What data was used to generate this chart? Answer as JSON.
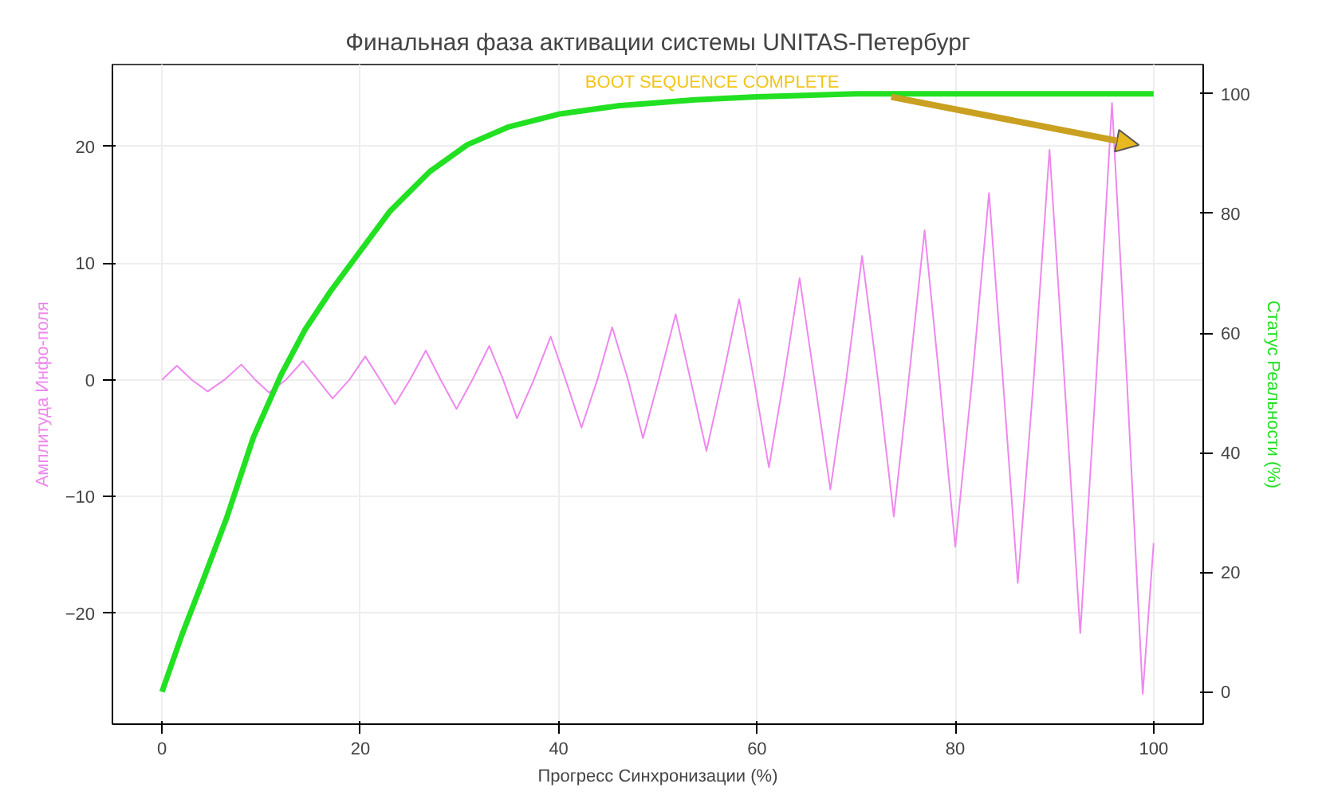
{
  "chart_data": {
    "type": "line",
    "title": "Финальная фаза активации системы UNITAS-Петербург",
    "xlabel": "Прогресс Синхронизации (%)",
    "ylabel": "Амплитуда Инфо-поля",
    "y2label": "Статус Реальности (%)",
    "xlim": [
      -5,
      105
    ],
    "xticks": [
      0,
      20,
      40,
      60,
      80,
      100
    ],
    "ylim": [
      -29.5,
      27
    ],
    "yticks": [
      -20,
      -10,
      0,
      10,
      20
    ],
    "y2lim": [
      -5.4,
      104.9
    ],
    "y2ticks": [
      0,
      20,
      40,
      60,
      80,
      100
    ],
    "grid": true,
    "annotations": [
      "BOOT SEQUENCE COMPLETE"
    ],
    "series": [
      {
        "color": "#ee88ee",
        "x": [
          0,
          1.5,
          3.0,
          4.6,
          6.3,
          8,
          9.4,
          10.8,
          12.5,
          14.2,
          15.7,
          17.2,
          18.9,
          20.5,
          22,
          23.5,
          25,
          26.6,
          28.1,
          29.7,
          31.3,
          33,
          34.4,
          35.8,
          37.5,
          39.2,
          40.7,
          42.3,
          43.9,
          45.4,
          47,
          48.5,
          50.1,
          51.8,
          53.3,
          54.9,
          56.5,
          58.2,
          59.7,
          61.2,
          62.7,
          64.3,
          65.8,
          67.4,
          69,
          70.6,
          72.2,
          73.8,
          75.3,
          76.9,
          78.4,
          80,
          81.7,
          83.4,
          84.8,
          86.3,
          87.9,
          89.5,
          91,
          92.6,
          94.2,
          95.8,
          97.3,
          98.9,
          100
        ],
        "values": [
          0,
          1.2,
          0,
          -1.0,
          0,
          1.3,
          0,
          -1.1,
          0,
          1.6,
          0,
          -1.6,
          0,
          2.0,
          0,
          -2.1,
          0,
          2.5,
          0,
          -2.5,
          0,
          2.9,
          0,
          -3.3,
          0,
          3.7,
          0,
          -4.1,
          0,
          4.5,
          0,
          -5.0,
          0,
          5.6,
          0,
          -6.1,
          0,
          6.9,
          0,
          -7.5,
          0,
          8.7,
          0,
          -9.4,
          0,
          10.6,
          0,
          -11.7,
          0,
          12.8,
          0,
          -14.3,
          0,
          16.0,
          0,
          -17.4,
          0,
          19.7,
          0,
          -21.7,
          0,
          23.7,
          0,
          -26.9,
          -14.0
        ]
      },
      {
        "color": "#22e022",
        "axis": "y2",
        "x": [
          0,
          2,
          4.1,
          6.5,
          9.2,
          12,
          14.4,
          17,
          19.5,
          23,
          27,
          30.8,
          35,
          40,
          46,
          53.8,
          60,
          70,
          80,
          90,
          100
        ],
        "values": [
          0,
          9.5,
          18.5,
          29,
          42.5,
          53,
          60.5,
          67,
          72.6,
          80.4,
          87,
          91.5,
          94.5,
          96.6,
          98,
          99,
          99.5,
          100,
          100,
          100,
          100
        ]
      }
    ]
  }
}
